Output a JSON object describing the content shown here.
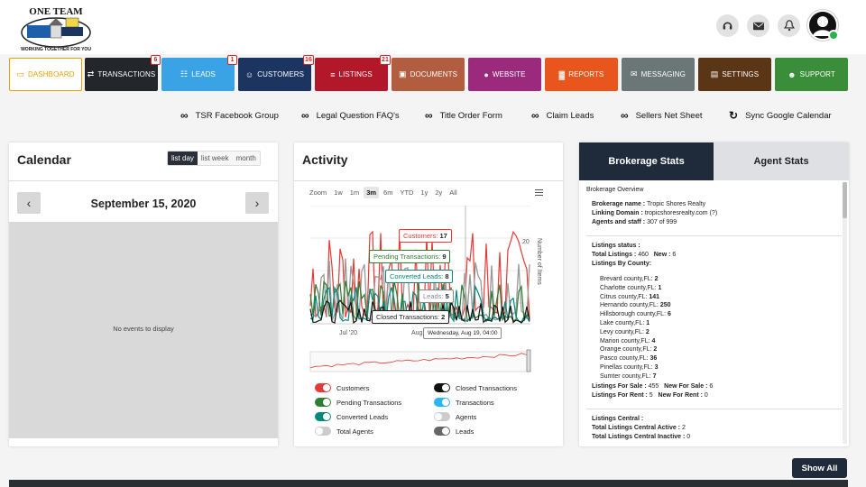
{
  "brand": {
    "name": "ONE TEAM",
    "tagline": "WORKING TOGETHER FOR YOU"
  },
  "header_icons": [
    "headset-icon",
    "mail-icon",
    "bell-icon"
  ],
  "nav": [
    {
      "label": "DASHBOARD",
      "color": "#ffffff",
      "icon": "monitor-icon"
    },
    {
      "label": "TRANSACTIONS",
      "color": "#23272b",
      "badge": "6",
      "icon": "swap-icon"
    },
    {
      "label": "LEADS",
      "color": "#3aa3e6",
      "badge": "1",
      "icon": "sitemap-icon"
    },
    {
      "label": "CUSTOMERS",
      "color": "#1b3560",
      "badge": "16",
      "icon": "users-icon"
    },
    {
      "label": "LISTINGS",
      "color": "#b3172a",
      "badge": "21",
      "icon": "list-icon"
    },
    {
      "label": "DOCUMENTS",
      "color": "#b25d3f",
      "icon": "briefcase-icon"
    },
    {
      "label": "WEBSITE",
      "color": "#9b2a7d",
      "icon": "globe-icon"
    },
    {
      "label": "REPORTS",
      "color": "#e8561e",
      "icon": "chart-icon"
    },
    {
      "label": "MESSAGING",
      "color": "#6b7776",
      "icon": "envelope-icon"
    },
    {
      "label": "SETTINGS",
      "color": "#5a3516",
      "icon": "clipboard-icon"
    },
    {
      "label": "SUPPORT",
      "color": "#3a8e3a",
      "icon": "user-plus-icon"
    }
  ],
  "quick_links": [
    "TSR Facebook Group",
    "Legal Question FAQ's",
    "Title Order Form",
    "Claim Leads",
    "Sellers Net Sheet",
    "Sync Google Calendar"
  ],
  "calendar": {
    "title": "Calendar",
    "views": [
      "list day",
      "list week",
      "month"
    ],
    "active_view": "list day",
    "date": "September 15, 2020",
    "empty": "No events to display"
  },
  "activity": {
    "title": "Activity",
    "zoom_label": "Zoom",
    "zoom_options": [
      "1w",
      "1m",
      "3m",
      "6m",
      "YTD",
      "1y",
      "2y",
      "All"
    ],
    "active_zoom": "3m",
    "right_axis_label": "Number of Items",
    "right_axis_tick": "20",
    "x_ticks": [
      "Jul '20",
      "Aug"
    ],
    "tooltip_date": "Wednesday, Aug 19, 04:00",
    "tooltips": [
      {
        "label": "Customers:",
        "value": "17",
        "color": "#e53935"
      },
      {
        "label": "Pending Transactions:",
        "value": "9",
        "color": "#2e7d32"
      },
      {
        "label": "Converted Leads:",
        "value": "8",
        "color": "#00897b"
      },
      {
        "label": "Leads:",
        "value": "5",
        "color": "#888888"
      },
      {
        "label": "Closed Transactions:",
        "value": "2",
        "color": "#222222"
      }
    ],
    "legend": [
      {
        "label": "Customers",
        "color": "#e53935",
        "on": true
      },
      {
        "label": "Closed Transactions",
        "color": "#111111",
        "on": true
      },
      {
        "label": "Pending Transactions",
        "color": "#2e7d32",
        "on": true
      },
      {
        "label": "Transactions",
        "color": "#29b6f6",
        "on": true
      },
      {
        "label": "Converted Leads",
        "color": "#00897b",
        "on": true
      },
      {
        "label": "Agents",
        "color": "#cccccc",
        "on": false
      },
      {
        "label": "Total Agents",
        "color": "#cccccc",
        "on": false
      },
      {
        "label": "Leads",
        "color": "#666666",
        "on": true
      }
    ]
  },
  "stats": {
    "tabs": [
      "Brokerage Stats",
      "Agent Stats"
    ],
    "active_tab": "Brokerage Stats",
    "overview_title": "Brokerage Overview",
    "brokerage_name_label": "Brokerage name :",
    "brokerage_name": "Tropic Shores Realty",
    "linking_domain_label": "Linking Domain :",
    "linking_domain": "tropicshoresrealty.com",
    "agents_label": "Agents and staff :",
    "agents": "307 of 999",
    "listings_status_label": "Listings status :",
    "total_listings_label": "Total Listings :",
    "total_listings": "460",
    "new_label": "New :",
    "new_value": "6",
    "by_county_label": "Listings By County:",
    "counties": [
      {
        "name": "Brevard county,FL:",
        "value": "2"
      },
      {
        "name": "Charlotte county,FL:",
        "value": "1"
      },
      {
        "name": "Citrus county,FL:",
        "value": "141"
      },
      {
        "name": "Hernando county,FL:",
        "value": "250"
      },
      {
        "name": "Hillsborough county,FL:",
        "value": "6"
      },
      {
        "name": "Lake county,FL:",
        "value": "1"
      },
      {
        "name": "Levy county,FL:",
        "value": "2"
      },
      {
        "name": "Marion county,FL:",
        "value": "4"
      },
      {
        "name": "Orange county,FL:",
        "value": "2"
      },
      {
        "name": "Pasco county,FL:",
        "value": "36"
      },
      {
        "name": "Pinellas county,FL:",
        "value": "3"
      },
      {
        "name": "Sumter county,FL:",
        "value": "7"
      }
    ],
    "for_sale_label": "Listings For Sale :",
    "for_sale": "455",
    "new_for_sale_label": "New For Sale :",
    "new_for_sale": "6",
    "for_rent_label": "Listings For Rent :",
    "for_rent": "5",
    "new_for_rent_label": "New For Rent :",
    "new_for_rent": "0",
    "central_label": "Listings Central :",
    "central_active_label": "Total Listings Central Active :",
    "central_active": "2",
    "central_inactive_label": "Total Listings Central Inactive :",
    "central_inactive": "0"
  },
  "show_all": "Show All"
}
